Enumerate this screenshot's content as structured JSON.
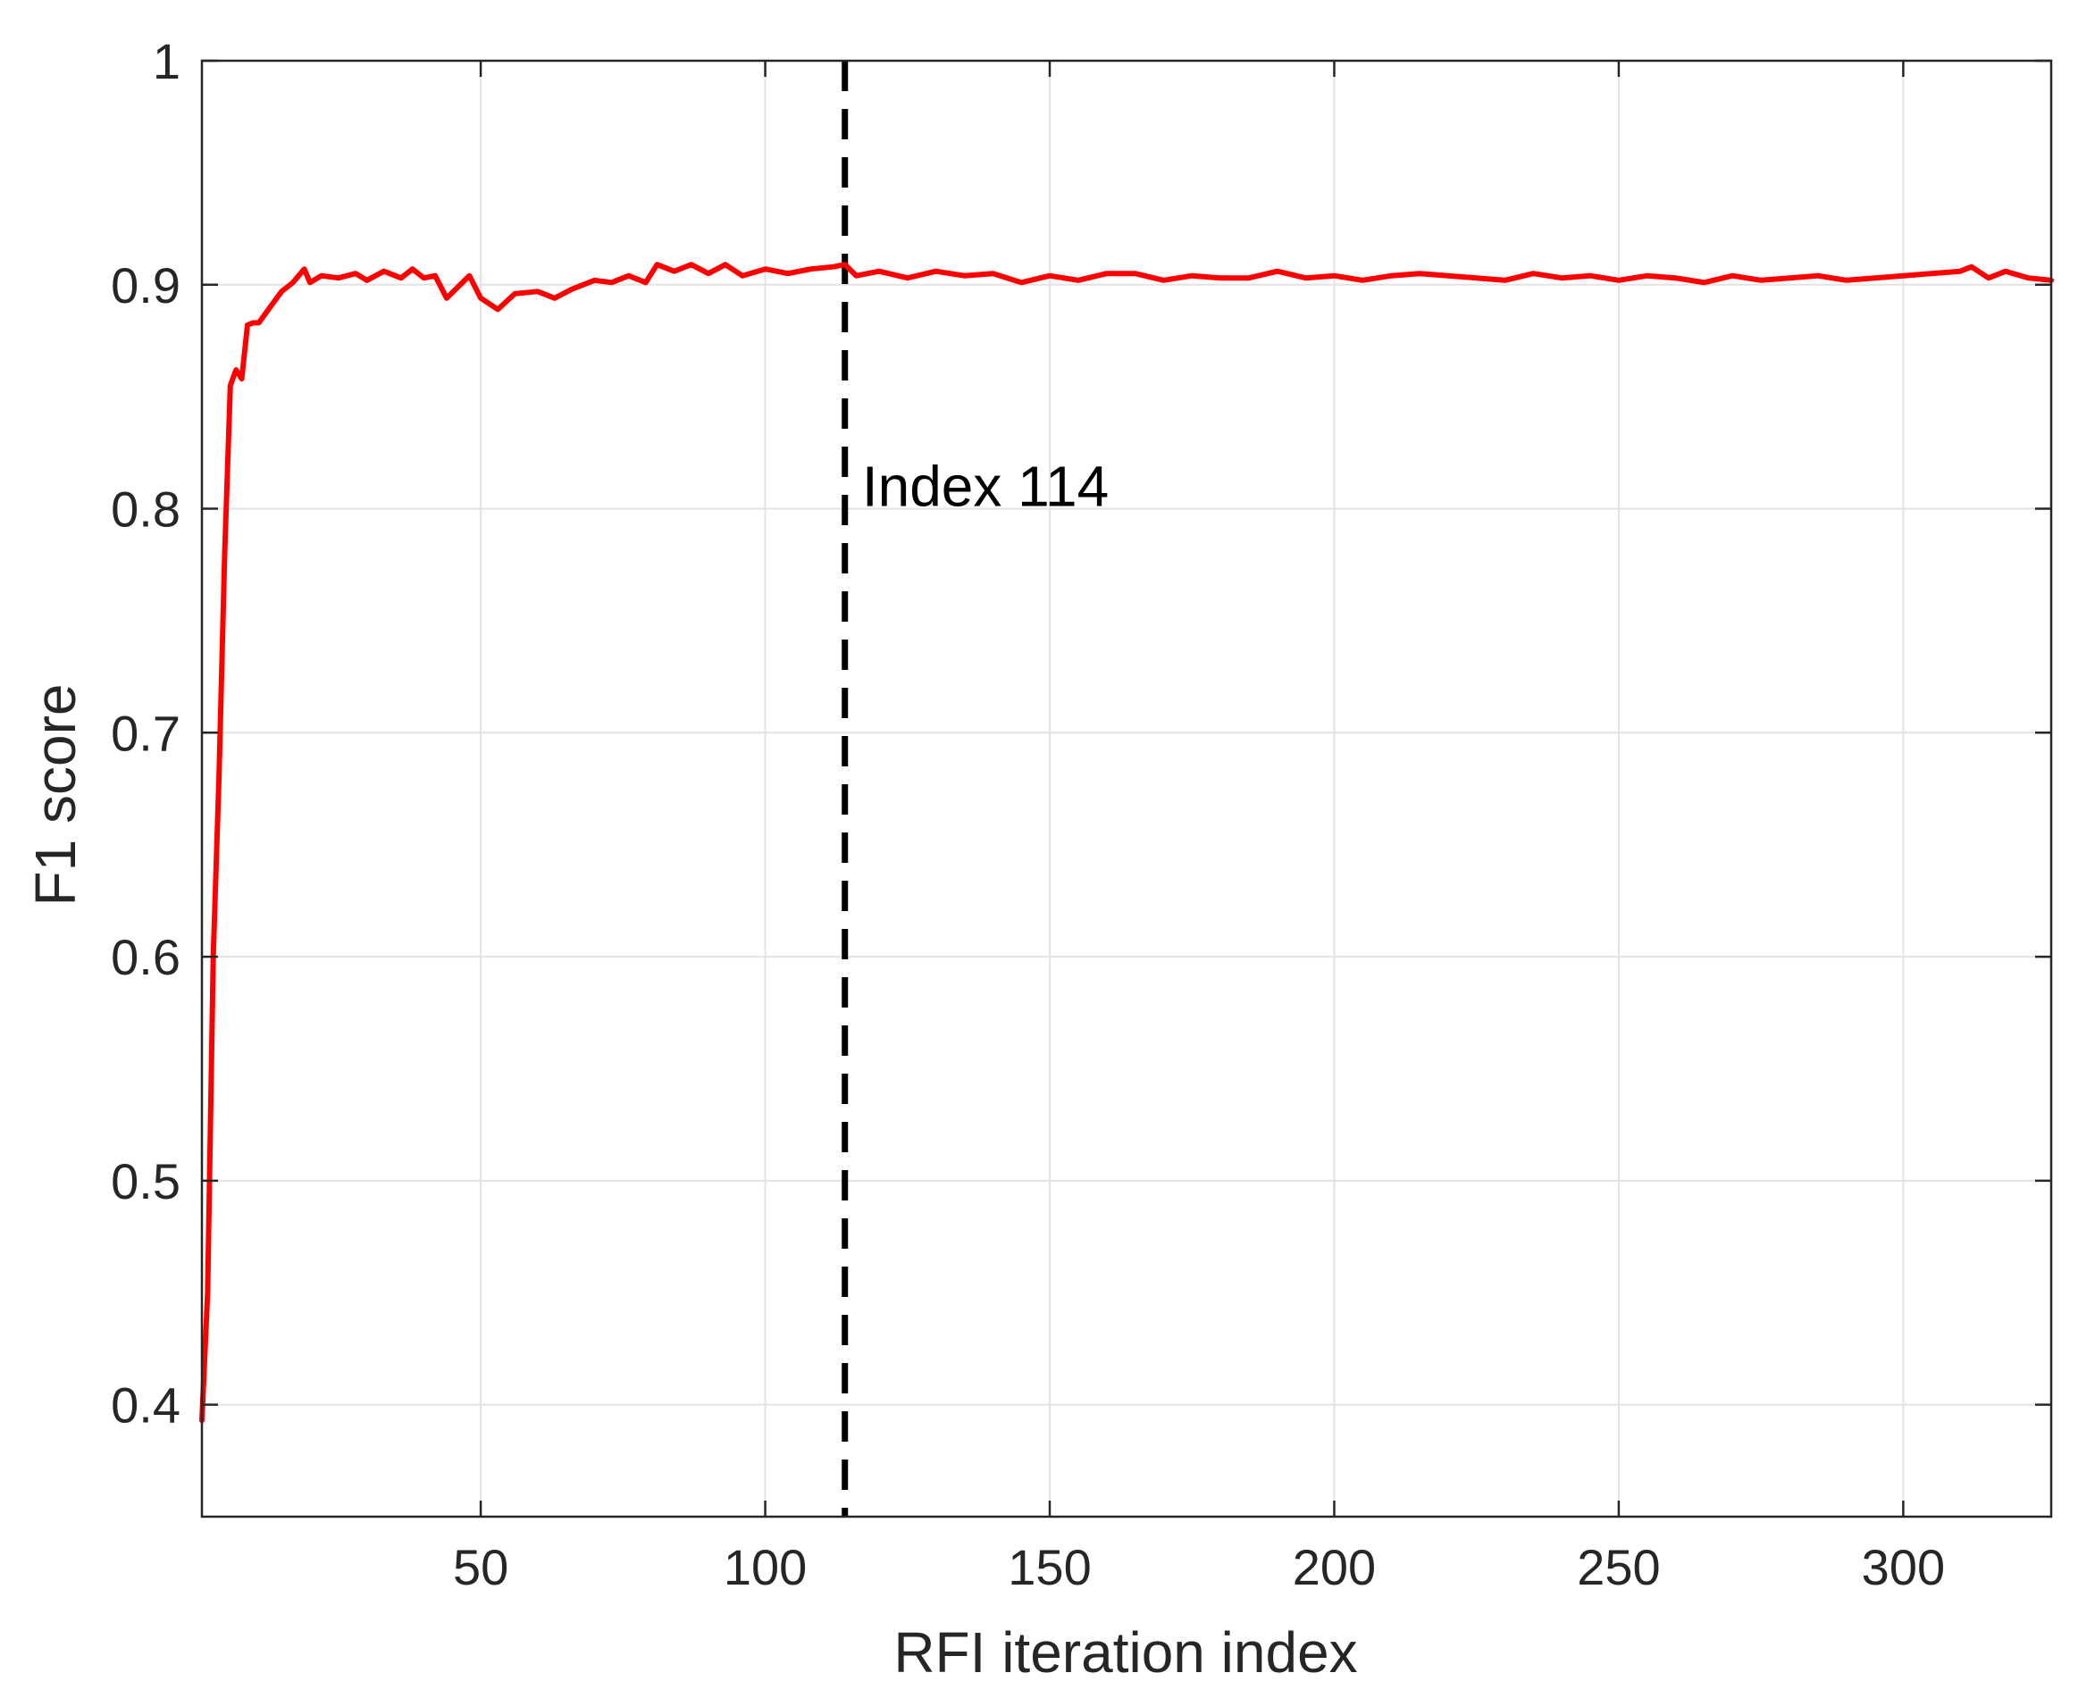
{
  "chart_data": {
    "type": "line",
    "title": "",
    "xlabel": "RFI iteration index",
    "ylabel": "F1 score",
    "xlim": [
      1,
      326
    ],
    "ylim": [
      0.35,
      1.0
    ],
    "xticks": [
      50,
      100,
      150,
      200,
      250,
      300
    ],
    "yticks": [
      0.4,
      0.5,
      0.6,
      0.7,
      0.8,
      0.9,
      1.0
    ],
    "ytick_labels": [
      "0.4",
      "0.5",
      "0.6",
      "0.7",
      "0.8",
      "0.9",
      "1"
    ],
    "grid": true,
    "line_color": "#ff0000",
    "marker_line": {
      "x": 114,
      "style": "dashed",
      "color": "#000000"
    },
    "annotation": {
      "text": "Index 114",
      "x": 117,
      "y": 0.81
    },
    "series": [
      {
        "points": [
          [
            1,
            0.393
          ],
          [
            2,
            0.45
          ],
          [
            3,
            0.6
          ],
          [
            4,
            0.68
          ],
          [
            5,
            0.78
          ],
          [
            6,
            0.855
          ],
          [
            7,
            0.862
          ],
          [
            8,
            0.858
          ],
          [
            9,
            0.882
          ],
          [
            10,
            0.883
          ],
          [
            11,
            0.883
          ],
          [
            13,
            0.89
          ],
          [
            15,
            0.897
          ],
          [
            17,
            0.901
          ],
          [
            19,
            0.907
          ],
          [
            20,
            0.901
          ],
          [
            22,
            0.904
          ],
          [
            25,
            0.903
          ],
          [
            28,
            0.905
          ],
          [
            30,
            0.902
          ],
          [
            33,
            0.906
          ],
          [
            36,
            0.903
          ],
          [
            38,
            0.907
          ],
          [
            40,
            0.903
          ],
          [
            42,
            0.904
          ],
          [
            44,
            0.894
          ],
          [
            46,
            0.899
          ],
          [
            48,
            0.904
          ],
          [
            50,
            0.894
          ],
          [
            53,
            0.889
          ],
          [
            56,
            0.896
          ],
          [
            60,
            0.897
          ],
          [
            63,
            0.894
          ],
          [
            66,
            0.898
          ],
          [
            70,
            0.902
          ],
          [
            73,
            0.901
          ],
          [
            76,
            0.904
          ],
          [
            79,
            0.901
          ],
          [
            81,
            0.909
          ],
          [
            84,
            0.906
          ],
          [
            87,
            0.909
          ],
          [
            90,
            0.905
          ],
          [
            93,
            0.909
          ],
          [
            96,
            0.904
          ],
          [
            100,
            0.907
          ],
          [
            104,
            0.905
          ],
          [
            108,
            0.907
          ],
          [
            112,
            0.908
          ],
          [
            114,
            0.909
          ],
          [
            116,
            0.904
          ],
          [
            120,
            0.906
          ],
          [
            125,
            0.903
          ],
          [
            130,
            0.906
          ],
          [
            135,
            0.904
          ],
          [
            140,
            0.905
          ],
          [
            145,
            0.901
          ],
          [
            150,
            0.904
          ],
          [
            155,
            0.902
          ],
          [
            160,
            0.905
          ],
          [
            165,
            0.905
          ],
          [
            170,
            0.902
          ],
          [
            175,
            0.904
          ],
          [
            180,
            0.903
          ],
          [
            185,
            0.903
          ],
          [
            190,
            0.906
          ],
          [
            195,
            0.903
          ],
          [
            200,
            0.904
          ],
          [
            205,
            0.902
          ],
          [
            210,
            0.904
          ],
          [
            215,
            0.905
          ],
          [
            220,
            0.904
          ],
          [
            225,
            0.903
          ],
          [
            230,
            0.902
          ],
          [
            235,
            0.905
          ],
          [
            240,
            0.903
          ],
          [
            245,
            0.904
          ],
          [
            250,
            0.902
          ],
          [
            255,
            0.904
          ],
          [
            260,
            0.903
          ],
          [
            265,
            0.901
          ],
          [
            270,
            0.904
          ],
          [
            275,
            0.902
          ],
          [
            280,
            0.903
          ],
          [
            285,
            0.904
          ],
          [
            290,
            0.902
          ],
          [
            295,
            0.903
          ],
          [
            300,
            0.904
          ],
          [
            305,
            0.905
          ],
          [
            310,
            0.906
          ],
          [
            312,
            0.908
          ],
          [
            315,
            0.903
          ],
          [
            318,
            0.906
          ],
          [
            322,
            0.903
          ],
          [
            326,
            0.902
          ]
        ]
      }
    ]
  }
}
